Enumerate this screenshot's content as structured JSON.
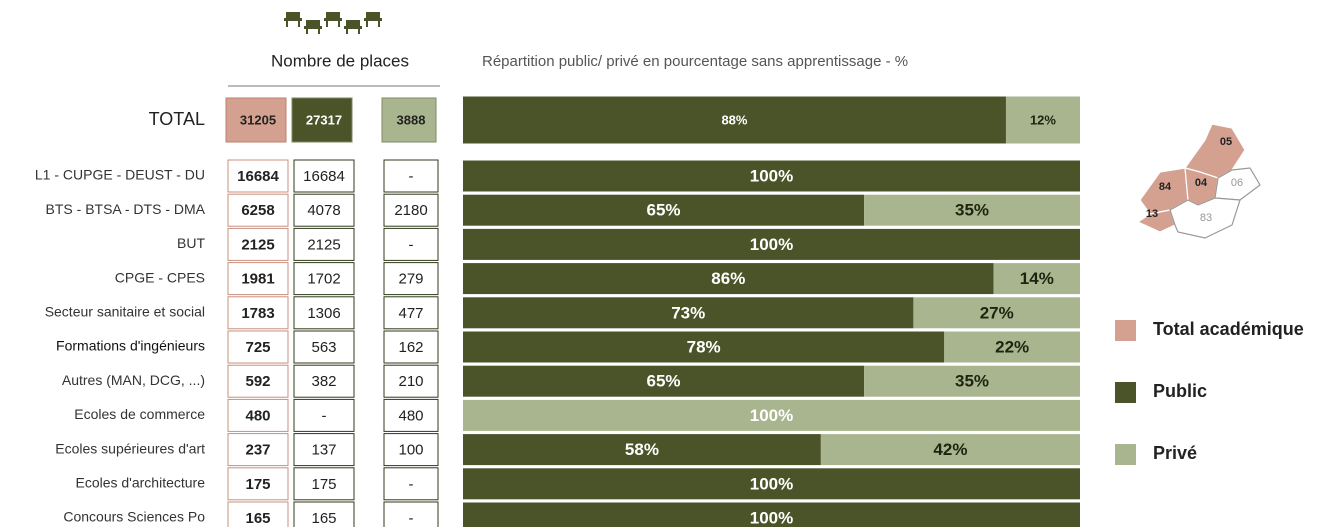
{
  "header": {
    "places_title": "Nombre de places",
    "split_title": "Répartition public/ privé en pourcentage sans apprentissage - %"
  },
  "colors": {
    "total": "#d4a190",
    "public": "#4b5428",
    "prive": "#a9b58f"
  },
  "total": {
    "label": "TOTAL",
    "total": 31205,
    "public": 27317,
    "prive": 3888,
    "segments": [
      {
        "color": "#4b5428",
        "value": 88,
        "label": "88%"
      },
      {
        "color": "#a9b58f",
        "value": 12,
        "label": "12%"
      }
    ]
  },
  "rows": [
    {
      "label": "L1 - CUPGE - DEUST - DU",
      "total": 16684,
      "public": 16684,
      "prive": "-",
      "segments": [
        {
          "color": "#4b5428",
          "value": 100,
          "label": "100%"
        }
      ]
    },
    {
      "label": "BTS - BTSA - DTS - DMA",
      "total": 6258,
      "public": 4078,
      "prive": 2180,
      "segments": [
        {
          "color": "#4b5428",
          "value": 65,
          "label": "65%"
        },
        {
          "color": "#a9b58f",
          "value": 35,
          "label": "35%"
        }
      ]
    },
    {
      "label": "BUT",
      "total": 2125,
      "public": 2125,
      "prive": "-",
      "segments": [
        {
          "color": "#4b5428",
          "value": 100,
          "label": "100%"
        }
      ]
    },
    {
      "label": "CPGE - CPES",
      "total": 1981,
      "public": 1702,
      "prive": 279,
      "segments": [
        {
          "color": "#4b5428",
          "value": 86,
          "label": "86%"
        },
        {
          "color": "#a9b58f",
          "value": 14,
          "label": "14%"
        }
      ]
    },
    {
      "label": "Secteur sanitaire et social",
      "total": 1783,
      "public": 1306,
      "prive": 477,
      "segments": [
        {
          "color": "#4b5428",
          "value": 73,
          "label": "73%"
        },
        {
          "color": "#a9b58f",
          "value": 27,
          "label": "27%"
        }
      ]
    },
    {
      "label": "Formations d'ingénieurs",
      "total": 725,
      "public": 563,
      "prive": 162,
      "segments": [
        {
          "color": "#4b5428",
          "value": 78,
          "label": "78%"
        },
        {
          "color": "#a9b58f",
          "value": 22,
          "label": "22%"
        }
      ]
    },
    {
      "label": "Autres (MAN, DCG, ...)",
      "total": 592,
      "public": 382,
      "prive": 210,
      "segments": [
        {
          "color": "#4b5428",
          "value": 65,
          "label": "65%"
        },
        {
          "color": "#a9b58f",
          "value": 35,
          "label": "35%"
        }
      ]
    },
    {
      "label": "Ecoles de commerce",
      "total": 480,
      "public": "-",
      "prive": 480,
      "segments": [
        {
          "color": "#a9b58f",
          "value": 100,
          "label": "100%"
        }
      ]
    },
    {
      "label": "Ecoles supérieures d'art",
      "total": 237,
      "public": 137,
      "prive": 100,
      "segments": [
        {
          "color": "#4b5428",
          "value": 58,
          "label": "58%"
        },
        {
          "color": "#a9b58f",
          "value": 42,
          "label": "42%"
        }
      ]
    },
    {
      "label": "Ecoles d'architecture",
      "total": 175,
      "public": 175,
      "prive": "-",
      "segments": [
        {
          "color": "#4b5428",
          "value": 100,
          "label": "100%"
        }
      ]
    },
    {
      "label": "Concours Sciences Po",
      "total": 165,
      "public": 165,
      "prive": "-",
      "segments": [
        {
          "color": "#4b5428",
          "value": 100,
          "label": "100%"
        }
      ]
    }
  ],
  "legend": [
    {
      "name": "Total académique",
      "color": "#d4a190"
    },
    {
      "name": "Public",
      "color": "#4b5428"
    },
    {
      "name": "Privé",
      "color": "#a9b58f"
    }
  ],
  "map": {
    "labels": [
      "05",
      "84",
      "04",
      "06",
      "13",
      "83"
    ]
  }
}
